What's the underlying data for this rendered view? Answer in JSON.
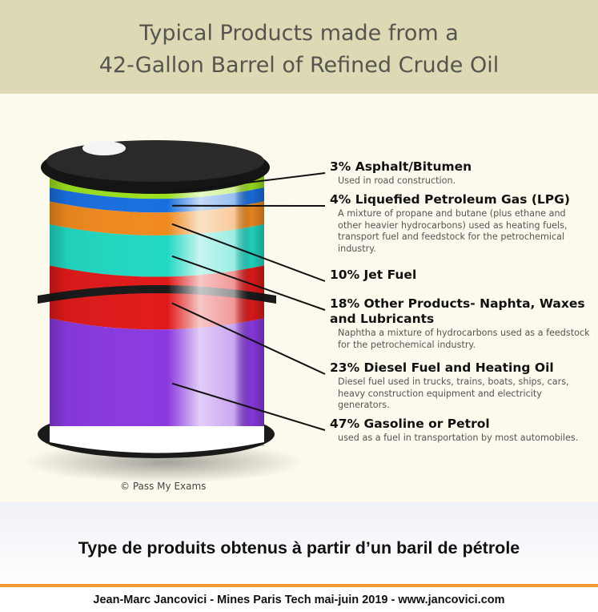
{
  "title": {
    "line1": "Typical Products made from a",
    "line2": "42-Gallon Barrel of Refined Crude Oil"
  },
  "products": [
    {
      "pct": 3,
      "label": "3% Asphalt/Bitumen",
      "desc": "Used in road construction.",
      "color": "#9be01e"
    },
    {
      "pct": 4,
      "label": "4% Liquefied Petroleum Gas (LPG)",
      "desc": "A mixture of propane and butane (plus ethane and other heavier hydrocarbons) used as heating fuels, transport fuel and feedstock for the petrochemical industry.",
      "color": "#1a6fe0"
    },
    {
      "pct": 10,
      "label": "10% Jet Fuel",
      "desc": "",
      "color": "#f08a1f"
    },
    {
      "pct": 18,
      "label": "18% Other Products- Naphta, Waxes and Lubricants",
      "desc": "Naphtha a mixture of hydrocarbons used as a feedstock for the petrochemical industry.",
      "color": "#22d8c2"
    },
    {
      "pct": 23,
      "label": "23% Diesel Fuel and Heating Oil",
      "desc": "Diesel fuel used in trucks, trains, boats, ships, cars, heavy construction equipment and electricity generators.",
      "color": "#e01a1a"
    },
    {
      "pct": 47,
      "label": "47% Gasoline or Petrol",
      "desc": "used as a fuel in transportation by most automobiles.",
      "color": "#8a3ae0"
    }
  ],
  "credit": "© Pass My Exams",
  "subtitle": "Type de produits obtenus à partir d’un baril de pétrole",
  "footer": "Jean-Marc Jancovici - Mines Paris Tech mai-juin 2019 - www.jancovici.com",
  "colors": {
    "header_bg": "#ddd9b4",
    "panel_bg": "#fcfaec",
    "accent": "#f29a2e",
    "barrel_black": "#1a1a1a"
  }
}
